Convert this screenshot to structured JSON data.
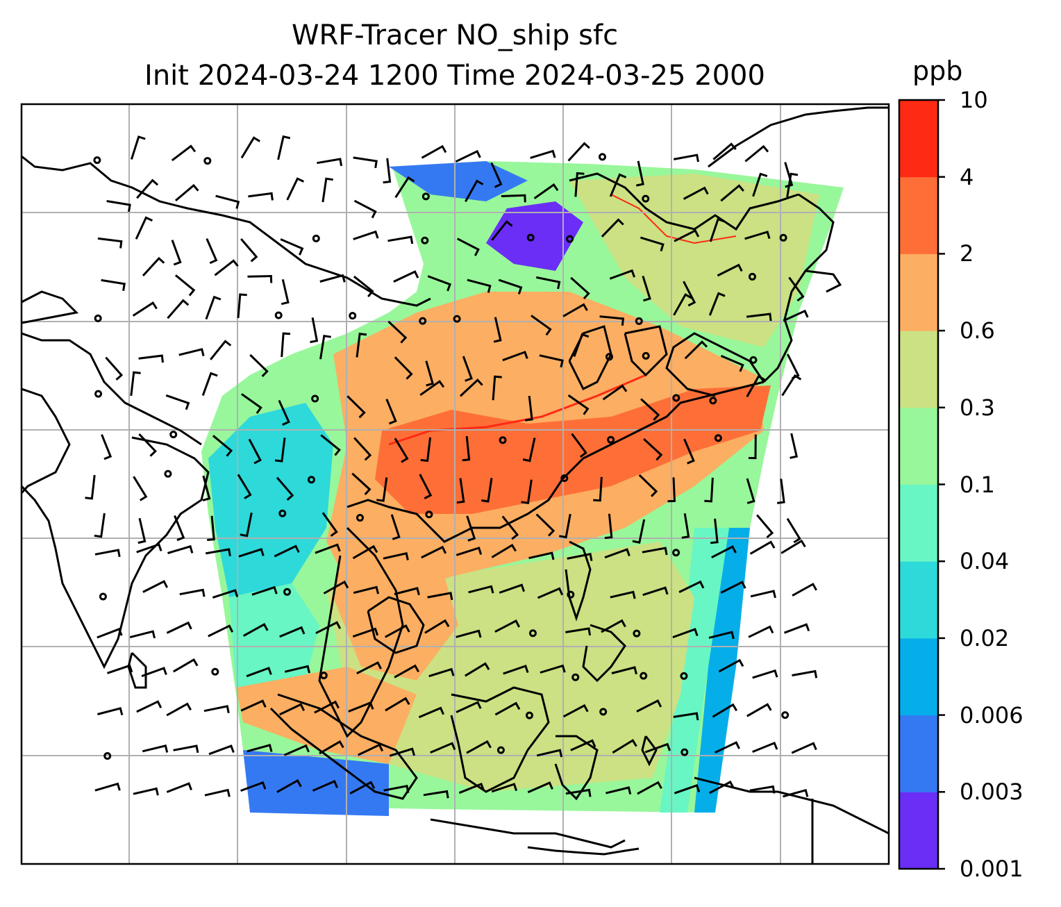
{
  "figure": {
    "title_line1": "WRF-Tracer NO_ship sfc",
    "title_line2": "Init 2024-03-24 1200 Time 2024-03-25 2000"
  },
  "colorbar": {
    "unit": "ppb",
    "ticks": [
      "0.001",
      "0.003",
      "0.006",
      "0.02",
      "0.04",
      "0.1",
      "0.3",
      "0.6",
      "2",
      "4",
      "10"
    ],
    "colors": [
      "#6a2ef7",
      "#3579f2",
      "#06aee9",
      "#2ed9da",
      "#68f6c4",
      "#98f79a",
      "#cbe183",
      "#fcae62",
      "#fe6f38",
      "#ff2a14"
    ]
  },
  "map": {
    "background": "#ffffff",
    "gridline_color": "#b0b0b0",
    "coastline_color": "#000000",
    "wind_barbs": "black",
    "calm_markers": "open circles"
  }
}
